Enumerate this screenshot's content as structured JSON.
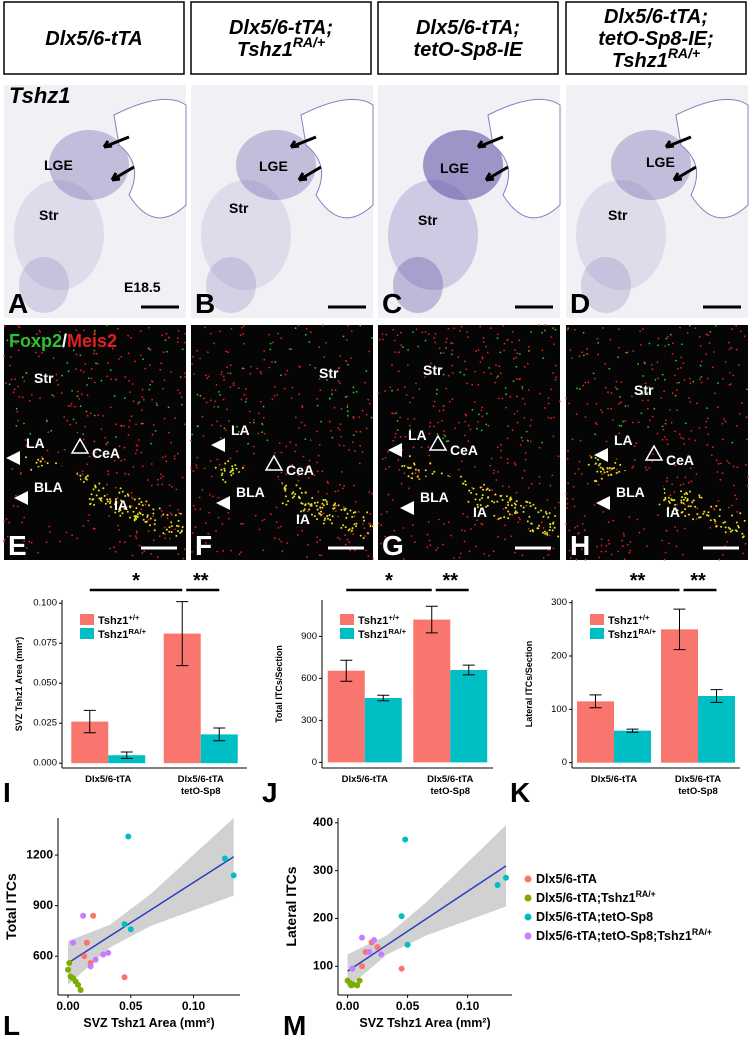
{
  "headers": [
    {
      "lines": [
        {
          "text": "Dlx5/6-tTA"
        }
      ]
    },
    {
      "lines": [
        {
          "text": "Dlx5/6-tTA;"
        },
        {
          "text": "Tshz1",
          "sup": "RA/+"
        }
      ]
    },
    {
      "lines": [
        {
          "text": "Dlx5/6-tTA;"
        },
        {
          "text": "tetO-Sp8-IE"
        }
      ]
    },
    {
      "lines": [
        {
          "text": "Dlx5/6-tTA;"
        },
        {
          "text": "tetO-Sp8-IE;"
        },
        {
          "text": "Tshz1",
          "sup": "RA/+"
        }
      ]
    }
  ],
  "ish_panels": [
    {
      "letter": "A",
      "labels": [
        "Tshz1",
        "LGE",
        "Str",
        "E18.5"
      ]
    },
    {
      "letter": "B",
      "labels": [
        "LGE",
        "Str"
      ]
    },
    {
      "letter": "C",
      "labels": [
        "LGE",
        "Str"
      ]
    },
    {
      "letter": "D",
      "labels": [
        "LGE",
        "Str"
      ]
    }
  ],
  "fluor_panels": [
    {
      "letter": "E",
      "title": [
        "Foxp2",
        "/",
        "Meis2"
      ],
      "labels": [
        "Str",
        "LA",
        "CeA",
        "BLA",
        "IA"
      ]
    },
    {
      "letter": "F",
      "labels": [
        "Str",
        "LA",
        "CeA",
        "BLA",
        "IA"
      ]
    },
    {
      "letter": "G",
      "labels": [
        "Str",
        "LA",
        "CeA",
        "BLA",
        "IA"
      ]
    },
    {
      "letter": "H",
      "labels": [
        "Str",
        "LA",
        "CeA",
        "BLA",
        "IA"
      ]
    }
  ],
  "chart_data": [
    {
      "type": "bar",
      "panel": "I",
      "ylabel": "SVZ Tshz1 Area (mm²)",
      "categories": [
        [
          "Dlx5/6-tTA"
        ],
        [
          "Dlx5/6-tTA",
          "tetO-Sp8"
        ]
      ],
      "series": [
        {
          "name": "Tshz1",
          "name_sup": "+/+",
          "color": "#F8766D",
          "values": [
            0.026,
            0.081
          ],
          "errors": [
            0.007,
            0.02
          ]
        },
        {
          "name": "Tshz1",
          "name_sup": "RA/+",
          "color": "#00BFC4",
          "values": [
            0.005,
            0.018
          ],
          "errors": [
            0.002,
            0.004
          ]
        }
      ],
      "ylim": [
        -0.003,
        0.102
      ],
      "yticks": [
        {
          "value": 0,
          "label": "0.000"
        },
        {
          "value": 0.025,
          "label": "0.025"
        },
        {
          "value": 0.05,
          "label": "0.050"
        },
        {
          "value": 0.075,
          "label": "0.075"
        },
        {
          "value": 0.1,
          "label": "0.100"
        }
      ],
      "annotations": [
        {
          "text": "*"
        },
        {
          "text": "**"
        }
      ]
    },
    {
      "type": "bar",
      "panel": "J",
      "ylabel": "Total ITCs/Section",
      "categories": [
        [
          "Dlx5/6-tTA"
        ],
        [
          "Dlx5/6-tTA",
          "tetO-Sp8"
        ]
      ],
      "series": [
        {
          "name": "Tshz1",
          "name_sup": "+/+",
          "color": "#F8766D",
          "values": [
            655,
            1020
          ],
          "errors": [
            75,
            95
          ]
        },
        {
          "name": "Tshz1",
          "name_sup": "RA/+",
          "color": "#00BFC4",
          "values": [
            460,
            660
          ],
          "errors": [
            20,
            35
          ]
        }
      ],
      "ylim": [
        -40,
        1160
      ],
      "yticks": [
        0,
        300,
        600,
        900
      ],
      "annotations": [
        {
          "text": "*"
        },
        {
          "text": "**"
        }
      ]
    },
    {
      "type": "bar",
      "panel": "K",
      "ylabel": "Lateral ITCs/Section",
      "categories": [
        [
          "Dlx5/6-tTA"
        ],
        [
          "Dlx5/6-tTA",
          "tetO-Sp8"
        ]
      ],
      "series": [
        {
          "name": "Tshz1",
          "name_sup": "+/+",
          "color": "#F8766D",
          "values": [
            115,
            250
          ],
          "errors": [
            12,
            38
          ]
        },
        {
          "name": "Tshz1",
          "name_sup": "RA/+",
          "color": "#00BFC4",
          "values": [
            60,
            125
          ],
          "errors": [
            3,
            12
          ]
        }
      ],
      "ylim": [
        -10,
        305
      ],
      "yticks": [
        0,
        100,
        200,
        300
      ],
      "annotations": [
        {
          "text": "**"
        },
        {
          "text": "**"
        }
      ]
    },
    {
      "type": "scatter",
      "panel": "L",
      "xlabel": "SVZ Tshz1 Area (mm²)",
      "ylabel": "Total ITCs",
      "xlim": [
        -0.008,
        0.137
      ],
      "xticks": [
        {
          "value": 0,
          "label": "0.00"
        },
        {
          "value": 0.05,
          "label": "0.05"
        },
        {
          "value": 0.1,
          "label": "0.10"
        }
      ],
      "ylim": [
        370,
        1420
      ],
      "yticks": [
        600,
        900,
        1200
      ],
      "series": [
        {
          "name": "Dlx5/6-tTA",
          "color": "#F8766D",
          "x": [
            0.02,
            0.015,
            0.013,
            0.045,
            0.018
          ],
          "values": [
            840,
            680,
            600,
            475,
            560
          ]
        },
        {
          "name": "Dlx5/6-tTA;Tshz1",
          "name_sup": "RA/+",
          "color": "#7CAE00",
          "x": [
            0.0,
            0.002,
            0.004,
            0.006,
            0.008,
            0.01,
            0.001
          ],
          "values": [
            520,
            480,
            470,
            450,
            430,
            400,
            560
          ]
        },
        {
          "name": "Dlx5/6-tTA;tetO-Sp8",
          "color": "#00BFC4",
          "x": [
            0.048,
            0.045,
            0.05,
            0.125,
            0.132
          ],
          "values": [
            1310,
            790,
            760,
            1180,
            1080
          ]
        },
        {
          "name": "Dlx5/6-tTA;tetO-Sp8;Tshz1",
          "name_sup": "RA/+",
          "color": "#C77CFF",
          "x": [
            0.012,
            0.028,
            0.022,
            0.032,
            0.004,
            0.018
          ],
          "values": [
            840,
            610,
            580,
            620,
            680,
            540
          ]
        }
      ],
      "fit": {
        "x": [
          0,
          0.033,
          0.066,
          0.099,
          0.132
        ],
        "y": [
          560,
          718,
          875,
          1033,
          1190
        ],
        "lower": [
          430,
          650,
          780,
          870,
          960
        ],
        "upper": [
          690,
          785,
          970,
          1195,
          1420
        ]
      }
    },
    {
      "type": "scatter",
      "panel": "M",
      "xlabel": "SVZ Tshz1 Area (mm²)",
      "ylabel": "Lateral ITCs",
      "xlim": [
        -0.008,
        0.137
      ],
      "xticks": [
        {
          "value": 0,
          "label": "0.00"
        },
        {
          "value": 0.05,
          "label": "0.05"
        },
        {
          "value": 0.1,
          "label": "0.10"
        }
      ],
      "ylim": [
        40,
        410
      ],
      "yticks": [
        100,
        200,
        300,
        400
      ],
      "series": [
        {
          "color": "#F8766D",
          "x": [
            0.02,
            0.015,
            0.025,
            0.045,
            0.012
          ],
          "values": [
            150,
            130,
            140,
            95,
            100
          ]
        },
        {
          "color": "#7CAE00",
          "x": [
            0.0,
            0.002,
            0.005,
            0.008,
            0.01,
            0.003
          ],
          "values": [
            70,
            65,
            62,
            60,
            70,
            60
          ]
        },
        {
          "color": "#00BFC4",
          "x": [
            0.048,
            0.045,
            0.05,
            0.125,
            0.132
          ],
          "values": [
            365,
            205,
            145,
            270,
            285
          ]
        },
        {
          "color": "#C77CFF",
          "x": [
            0.012,
            0.028,
            0.022,
            0.004,
            0.018
          ],
          "values": [
            160,
            125,
            155,
            95,
            130
          ]
        }
      ],
      "fit": {
        "x": [
          0,
          0.033,
          0.066,
          0.099,
          0.132
        ],
        "y": [
          90,
          145,
          200,
          255,
          310
        ],
        "lower": [
          55,
          125,
          165,
          195,
          225
        ],
        "upper": [
          125,
          165,
          235,
          315,
          395
        ]
      }
    }
  ]
}
